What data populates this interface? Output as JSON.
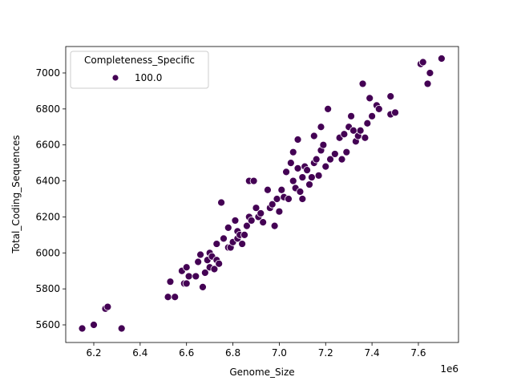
{
  "chart_data": {
    "type": "scatter",
    "x_label": "Genome_Size",
    "y_label": "Total_Coding_Sequences",
    "x_offset_label": "1e6",
    "legend_title": "Completeness_Specific",
    "legend_loc": "upper left",
    "xlim": [
      6.079,
      7.773
    ],
    "ylim": [
      5502,
      7147
    ],
    "xticks": [
      6.2,
      6.4,
      6.6,
      6.8,
      {
        "value": 7,
        "label": "7.0"
      },
      7.2,
      7.4,
      7.6
    ],
    "yticks": [
      5600,
      5800,
      6000,
      6200,
      6400,
      6600,
      6800,
      7000
    ],
    "series": [
      {
        "name": "100.0",
        "color": "#440154",
        "x": [
          6.15,
          6.2,
          6.25,
          6.26,
          6.32,
          6.52,
          6.53,
          6.55,
          6.58,
          6.59,
          6.6,
          6.6,
          6.61,
          6.64,
          6.65,
          6.66,
          6.67,
          6.68,
          6.69,
          6.7,
          6.7,
          6.71,
          6.72,
          6.73,
          6.73,
          6.74,
          6.75,
          6.76,
          6.78,
          6.78,
          6.79,
          6.8,
          6.81,
          6.82,
          6.82,
          6.83,
          6.84,
          6.85,
          6.86,
          6.87,
          6.87,
          6.88,
          6.89,
          6.9,
          6.91,
          6.92,
          6.93,
          6.95,
          6.96,
          6.97,
          6.98,
          6.99,
          7.0,
          7.01,
          7.02,
          7.03,
          7.04,
          7.05,
          7.06,
          7.06,
          7.07,
          7.08,
          7.08,
          7.09,
          7.1,
          7.1,
          7.11,
          7.12,
          7.13,
          7.14,
          7.15,
          7.15,
          7.16,
          7.17,
          7.18,
          7.18,
          7.19,
          7.2,
          7.21,
          7.22,
          7.24,
          7.26,
          7.27,
          7.28,
          7.29,
          7.3,
          7.31,
          7.32,
          7.33,
          7.34,
          7.35,
          7.36,
          7.37,
          7.38,
          7.39,
          7.4,
          7.42,
          7.43,
          7.48,
          7.48,
          7.5,
          7.61,
          7.62,
          7.64,
          7.65,
          7.7
        ],
        "values": [
          5580,
          5600,
          5690,
          5700,
          5580,
          5755,
          5840,
          5755,
          5900,
          5830,
          5920,
          5830,
          5870,
          5870,
          5950,
          5990,
          5810,
          5890,
          5960,
          5920,
          6000,
          5980,
          5910,
          5960,
          6050,
          5940,
          6280,
          6080,
          6030,
          6140,
          6030,
          6060,
          6180,
          6080,
          6120,
          6100,
          6050,
          6100,
          6150,
          6200,
          6400,
          6180,
          6400,
          6250,
          6200,
          6220,
          6170,
          6350,
          6250,
          6270,
          6150,
          6300,
          6230,
          6350,
          6310,
          6450,
          6300,
          6500,
          6560,
          6400,
          6360,
          6470,
          6630,
          6340,
          6420,
          6300,
          6480,
          6460,
          6380,
          6420,
          6500,
          6650,
          6520,
          6430,
          6570,
          6700,
          6600,
          6480,
          6800,
          6520,
          6550,
          6640,
          6520,
          6660,
          6560,
          6700,
          6760,
          6680,
          6620,
          6650,
          6680,
          6940,
          6640,
          6720,
          6860,
          6760,
          6820,
          6800,
          6870,
          6770,
          6780,
          7050,
          7060,
          6940,
          7000,
          7080
        ]
      }
    ]
  }
}
